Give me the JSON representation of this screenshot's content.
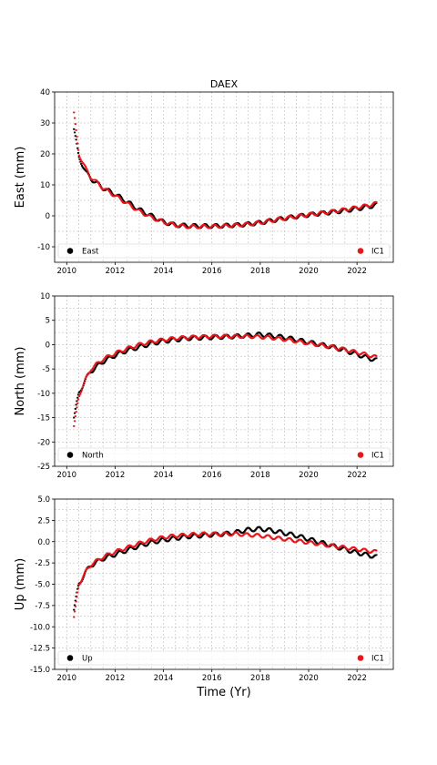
{
  "figure": {
    "title": "DAEX",
    "xlabel": "Time (Yr)"
  },
  "colors": {
    "observed": "#000000",
    "model": "#e8161b",
    "grid": "#b0b0b0"
  },
  "chart_data": [
    {
      "type": "scatter",
      "ylabel": "East (mm)",
      "xlim": [
        2009.5,
        2023.5
      ],
      "ylim": [
        -15,
        40
      ],
      "xticks": [
        2010,
        2012,
        2014,
        2016,
        2018,
        2020,
        2022
      ],
      "yticks": [
        -10,
        0,
        10,
        20,
        30,
        40
      ],
      "legend": {
        "left": "East",
        "right": "IC1",
        "placement": "bottom"
      },
      "series": [
        {
          "name": "East",
          "x": [
            2010.3,
            2010.5,
            2010.8,
            2011.0,
            2011.5,
            2012.0,
            2012.5,
            2013.0,
            2013.5,
            2014.0,
            2014.5,
            2015.0,
            2015.5,
            2016.0,
            2016.5,
            2017.0,
            2017.5,
            2018.0,
            2018.5,
            2019.0,
            2019.5,
            2020.0,
            2020.5,
            2021.0,
            2021.5,
            2022.0,
            2022.5,
            2022.8
          ],
          "y": [
            28,
            19,
            14,
            12,
            9,
            7,
            4.5,
            2,
            0,
            -2,
            -3,
            -3.2,
            -3.3,
            -3.3,
            -3.2,
            -3,
            -2.7,
            -2.2,
            -1.5,
            -0.8,
            -0.2,
            0.3,
            0.8,
            1.2,
            1.7,
            2.3,
            3.0,
            3.5
          ]
        },
        {
          "name": "IC1",
          "x": [
            2010.3,
            2010.5,
            2010.8,
            2011.0,
            2011.5,
            2012.0,
            2012.5,
            2013.0,
            2013.5,
            2014.0,
            2014.5,
            2015.0,
            2015.5,
            2016.0,
            2016.5,
            2017.0,
            2017.5,
            2018.0,
            2018.5,
            2019.0,
            2019.5,
            2020.0,
            2020.5,
            2021.0,
            2021.5,
            2022.0,
            2022.5,
            2022.8
          ],
          "y": [
            33,
            20,
            15,
            12.5,
            9,
            6.5,
            4,
            1.5,
            -0.5,
            -2,
            -3,
            -3.5,
            -3.5,
            -3.4,
            -3.3,
            -3,
            -2.7,
            -2.2,
            -1.5,
            -0.8,
            -0.2,
            0.4,
            0.9,
            1.4,
            2.0,
            2.7,
            3.4,
            4.0
          ]
        }
      ]
    },
    {
      "type": "scatter",
      "ylabel": "North (mm)",
      "xlim": [
        2009.5,
        2023.5
      ],
      "ylim": [
        -25,
        10
      ],
      "xticks": [
        2010,
        2012,
        2014,
        2016,
        2018,
        2020,
        2022
      ],
      "yticks": [
        -25,
        -20,
        -15,
        -10,
        -5,
        0,
        5,
        10
      ],
      "legend": {
        "left": "North",
        "right": "IC1",
        "placement": "bottom"
      },
      "series": [
        {
          "name": "North",
          "x": [
            2010.3,
            2010.5,
            2010.8,
            2011.0,
            2011.5,
            2012.0,
            2012.5,
            2013.0,
            2013.5,
            2014.0,
            2014.5,
            2015.0,
            2015.5,
            2016.0,
            2016.5,
            2017.0,
            2017.5,
            2018.0,
            2018.5,
            2019.0,
            2019.5,
            2020.0,
            2020.5,
            2021.0,
            2021.5,
            2022.0,
            2022.5,
            2022.8
          ],
          "y": [
            -15,
            -10,
            -7,
            -5.5,
            -3.5,
            -2.2,
            -1.2,
            -0.5,
            0.2,
            0.7,
            1.0,
            1.3,
            1.4,
            1.5,
            1.6,
            1.7,
            1.9,
            2.1,
            1.8,
            1.5,
            1.0,
            0.5,
            0.0,
            -0.5,
            -1.2,
            -2.0,
            -2.8,
            -3.2
          ]
        },
        {
          "name": "IC1",
          "x": [
            2010.3,
            2010.5,
            2010.8,
            2011.0,
            2011.5,
            2012.0,
            2012.5,
            2013.0,
            2013.5,
            2014.0,
            2014.5,
            2015.0,
            2015.5,
            2016.0,
            2016.5,
            2017.0,
            2017.5,
            2018.0,
            2018.5,
            2019.0,
            2019.5,
            2020.0,
            2020.5,
            2021.0,
            2021.5,
            2022.0,
            2022.5,
            2022.8
          ],
          "y": [
            -17,
            -10.5,
            -7,
            -5,
            -3,
            -1.8,
            -0.8,
            0,
            0.6,
            1.0,
            1.3,
            1.5,
            1.6,
            1.7,
            1.7,
            1.7,
            1.7,
            1.6,
            1.4,
            1.1,
            0.7,
            0.3,
            -0.1,
            -0.5,
            -1.0,
            -1.6,
            -2.2,
            -2.6
          ]
        }
      ]
    },
    {
      "type": "scatter",
      "ylabel": "Up (mm)",
      "xlim": [
        2009.5,
        2023.5
      ],
      "ylim": [
        -15,
        5
      ],
      "xticks": [
        2010,
        2012,
        2014,
        2016,
        2018,
        2020,
        2022
      ],
      "yticks": [
        -15.0,
        -12.5,
        -10.0,
        -7.5,
        -5.0,
        -2.5,
        0.0,
        2.5,
        5.0
      ],
      "legend": {
        "left": "Up",
        "right": "IC1",
        "placement": "bottom"
      },
      "series": [
        {
          "name": "Up",
          "x": [
            2010.3,
            2010.5,
            2010.8,
            2011.0,
            2011.5,
            2012.0,
            2012.5,
            2013.0,
            2013.5,
            2014.0,
            2014.5,
            2015.0,
            2015.5,
            2016.0,
            2016.5,
            2017.0,
            2017.5,
            2018.0,
            2018.5,
            2019.0,
            2019.5,
            2020.0,
            2020.5,
            2021.0,
            2021.5,
            2022.0,
            2022.5,
            2022.8
          ],
          "y": [
            -8,
            -5,
            -3.5,
            -2.8,
            -2.0,
            -1.5,
            -1.0,
            -0.5,
            -0.1,
            0.2,
            0.4,
            0.6,
            0.7,
            0.8,
            0.9,
            1.1,
            1.4,
            1.5,
            1.3,
            1.0,
            0.7,
            0.3,
            -0.1,
            -0.5,
            -0.9,
            -1.3,
            -1.6,
            -1.8
          ]
        },
        {
          "name": "IC1",
          "x": [
            2010.3,
            2010.5,
            2010.8,
            2011.0,
            2011.5,
            2012.0,
            2012.5,
            2013.0,
            2013.5,
            2014.0,
            2014.5,
            2015.0,
            2015.5,
            2016.0,
            2016.5,
            2017.0,
            2017.5,
            2018.0,
            2018.5,
            2019.0,
            2019.5,
            2020.0,
            2020.5,
            2021.0,
            2021.5,
            2022.0,
            2022.5,
            2022.8
          ],
          "y": [
            -9,
            -5,
            -3.5,
            -2.7,
            -1.8,
            -1.2,
            -0.7,
            -0.2,
            0.2,
            0.5,
            0.7,
            0.8,
            0.9,
            0.9,
            0.9,
            0.9,
            0.8,
            0.7,
            0.5,
            0.3,
            0.1,
            -0.1,
            -0.3,
            -0.5,
            -0.7,
            -0.9,
            -1.1,
            -1.2
          ]
        }
      ]
    }
  ]
}
